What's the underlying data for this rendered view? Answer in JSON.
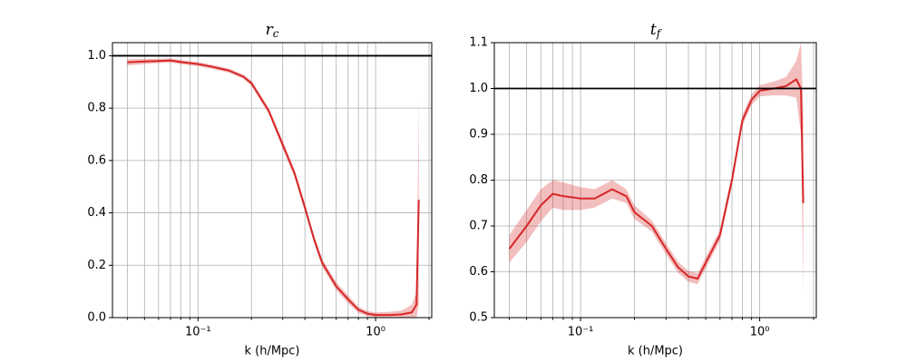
{
  "chart_data": [
    {
      "type": "line",
      "title": "r",
      "title_sub": "c",
      "xlabel": "k (h/Mpc)",
      "xscale": "log",
      "grid": true,
      "color": "#d62728",
      "hline": 1,
      "xlim": [
        0.033,
        2.07
      ],
      "ylim": [
        0,
        1.05
      ],
      "xticks": [
        {
          "value": 0.1,
          "label": "10⁻¹"
        },
        {
          "value": 1,
          "label": "10⁰"
        }
      ],
      "xminorticks": [
        0.04,
        0.05,
        0.06,
        0.07,
        0.08,
        0.09,
        0.2,
        0.3,
        0.4,
        0.5,
        0.6,
        0.7,
        0.8,
        0.9,
        2
      ],
      "yticks": [
        {
          "value": 0,
          "label": "0.0"
        },
        0.2,
        0.4,
        0.6,
        0.8,
        {
          "value": 1,
          "label": "1.0"
        }
      ],
      "x": [
        0.04,
        0.05,
        0.06,
        0.07,
        0.08,
        0.1,
        0.12,
        0.15,
        0.18,
        0.2,
        0.25,
        0.3,
        0.35,
        0.4,
        0.45,
        0.5,
        0.6,
        0.7,
        0.8,
        0.9,
        1.0,
        1.2,
        1.4,
        1.6,
        1.7,
        1.75
      ],
      "values": [
        0.975,
        0.978,
        0.98,
        0.982,
        0.976,
        0.968,
        0.958,
        0.943,
        0.92,
        0.895,
        0.79,
        0.66,
        0.55,
        0.42,
        0.3,
        0.21,
        0.12,
        0.07,
        0.03,
        0.015,
        0.01,
        0.01,
        0.012,
        0.02,
        0.05,
        0.45
      ],
      "errors": [
        0.012,
        0.01,
        0.008,
        0.008,
        0.008,
        0.008,
        0.008,
        0.008,
        0.008,
        0.01,
        0.012,
        0.015,
        0.015,
        0.015,
        0.015,
        0.015,
        0.015,
        0.015,
        0.012,
        0.01,
        0.01,
        0.012,
        0.015,
        0.03,
        0.05,
        0.4
      ]
    },
    {
      "type": "line",
      "title": "t",
      "title_sub": "f",
      "xlabel": "k (h/Mpc)",
      "xscale": "log",
      "grid": true,
      "color": "#d62728",
      "hline": 1,
      "xlim": [
        0.033,
        2.07
      ],
      "ylim": [
        0.5,
        1.1
      ],
      "xticks": [
        {
          "value": 0.1,
          "label": "10⁻¹"
        },
        {
          "value": 1,
          "label": "10⁰"
        }
      ],
      "xminorticks": [
        0.04,
        0.05,
        0.06,
        0.07,
        0.08,
        0.09,
        0.2,
        0.3,
        0.4,
        0.5,
        0.6,
        0.7,
        0.8,
        0.9,
        2
      ],
      "yticks": [
        0.5,
        0.6,
        0.7,
        0.8,
        0.9,
        {
          "value": 1,
          "label": "1.0"
        },
        1.1
      ],
      "x": [
        0.04,
        0.05,
        0.06,
        0.07,
        0.08,
        0.1,
        0.12,
        0.15,
        0.18,
        0.2,
        0.25,
        0.3,
        0.35,
        0.4,
        0.45,
        0.5,
        0.6,
        0.7,
        0.8,
        0.9,
        1.0,
        1.2,
        1.4,
        1.6,
        1.7,
        1.75
      ],
      "values": [
        0.65,
        0.7,
        0.745,
        0.77,
        0.765,
        0.76,
        0.76,
        0.78,
        0.765,
        0.73,
        0.7,
        0.65,
        0.61,
        0.59,
        0.585,
        0.62,
        0.68,
        0.8,
        0.93,
        0.975,
        0.995,
        1.0,
        1.005,
        1.02,
        1.0,
        0.75
      ],
      "errors": [
        0.03,
        0.035,
        0.035,
        0.03,
        0.03,
        0.025,
        0.02,
        0.02,
        0.015,
        0.015,
        0.012,
        0.012,
        0.012,
        0.012,
        0.012,
        0.012,
        0.012,
        0.012,
        0.012,
        0.012,
        0.012,
        0.015,
        0.02,
        0.04,
        0.1,
        0.2
      ]
    }
  ]
}
